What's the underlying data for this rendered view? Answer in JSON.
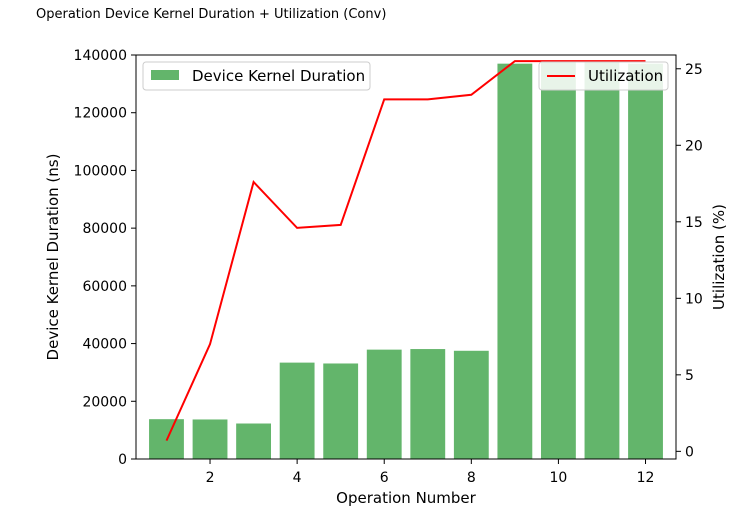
{
  "page": {
    "title": "Operation Device Kernel Duration + Utilization (Conv)"
  },
  "chart_data": {
    "type": "bar",
    "title": "Operation Device Kernel Duration + Utilization (Conv)",
    "xlabel": "Operation Number",
    "ylabel": "Device Kernel Duration (ns)",
    "y2label": "Utilization (%)",
    "x": [
      1,
      2,
      3,
      4,
      5,
      6,
      7,
      8,
      9,
      10,
      11,
      12
    ],
    "xlim": [
      0.3,
      12.7
    ],
    "ylim": [
      0,
      140000
    ],
    "y2lim": [
      -0.5,
      25.9
    ],
    "xticks": [
      2,
      4,
      6,
      8,
      10,
      12
    ],
    "xtick_labels": [
      "2",
      "4",
      "6",
      "8",
      "10",
      "12"
    ],
    "yticks": [
      0,
      20000,
      40000,
      60000,
      80000,
      100000,
      120000,
      140000
    ],
    "ytick_labels": [
      "0",
      "20000",
      "40000",
      "60000",
      "80000",
      "100000",
      "120000",
      "140000"
    ],
    "y2ticks": [
      0,
      5,
      10,
      15,
      20,
      25
    ],
    "y2tick_labels": [
      "0",
      "5",
      "10",
      "15",
      "20",
      "25"
    ],
    "series": [
      {
        "name": "Device Kernel Duration",
        "kind": "bar",
        "axis": "left",
        "color": "#63b56b",
        "values": [
          13800,
          13700,
          12300,
          33400,
          33100,
          37900,
          38100,
          37500,
          137000,
          137500,
          137600,
          137000
        ]
      },
      {
        "name": "Utilization",
        "kind": "line",
        "axis": "right",
        "color": "#ff0000",
        "values": [
          0.7,
          7.0,
          17.6,
          14.6,
          14.8,
          23.0,
          23.0,
          23.3,
          25.5,
          25.5,
          25.5,
          25.5
        ]
      }
    ],
    "legend": [
      {
        "label": "Device Kernel Duration",
        "placement": "top-left"
      },
      {
        "label": "Utilization",
        "placement": "top-right"
      }
    ],
    "grid": false
  }
}
